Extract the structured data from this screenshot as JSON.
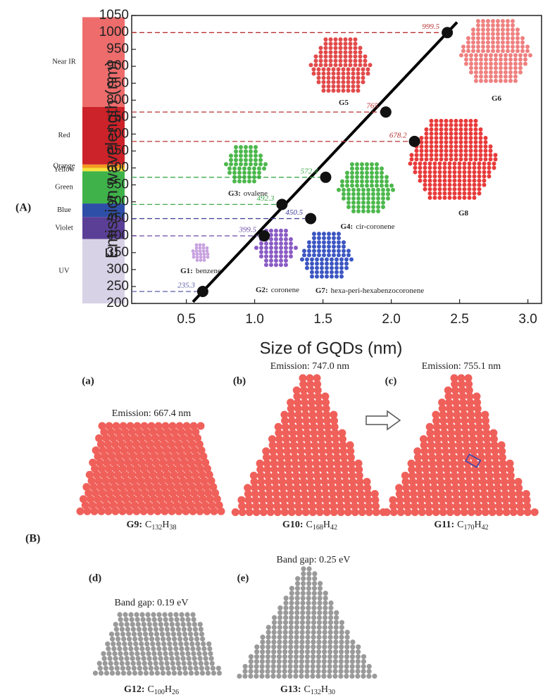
{
  "chart_data": {
    "type": "scatter",
    "y_label": "Emission wavelength (nm)",
    "x_label": "Size of GQDs (nm)",
    "x": [
      0.62,
      1.07,
      1.2,
      1.41,
      1.52,
      1.96,
      2.17,
      2.41
    ],
    "values": [
      235.3,
      399.5,
      492.3,
      450.5,
      572.4,
      765,
      678.2,
      999.5
    ],
    "point_colors": [
      "#5a5aa8",
      "#6a4aa8",
      "#3caa4a",
      "#3a3a98",
      "#3caa4a",
      "#b83232",
      "#b83232",
      "#b83232"
    ],
    "marker_color": "#111111",
    "trend_line": true,
    "xlim": [
      0.1,
      3.1
    ],
    "ylim": [
      200,
      1050
    ],
    "xticks": [
      0.5,
      {
        "value": 1,
        "label": "1.0"
      },
      1.5,
      {
        "value": 2,
        "label": "2.0"
      },
      2.5,
      {
        "value": 3,
        "label": "3.0"
      }
    ],
    "yticks": [
      200,
      250,
      300,
      350,
      400,
      450,
      500,
      550,
      600,
      650,
      700,
      750,
      800,
      850,
      900,
      950,
      1000,
      1050
    ]
  },
  "panel_a_label": "(A)",
  "spectrum": [
    {
      "label": "Near IR",
      "color": "#ee6c6c",
      "from": 780,
      "to": 1045
    },
    {
      "label": "Red",
      "color": "#cc2229",
      "from": 610,
      "to": 780
    },
    {
      "label": "Orange",
      "color": "#f39a21",
      "from": 600,
      "to": 610
    },
    {
      "label": "Yellow",
      "color": "#f5e23b",
      "from": 590,
      "to": 600
    },
    {
      "label": "Green",
      "color": "#3fb24a",
      "from": 495,
      "to": 590
    },
    {
      "label": "Blue",
      "color": "#2e4fa8",
      "from": 455,
      "to": 495
    },
    {
      "label": "Violet",
      "color": "#5b3f96",
      "from": 390,
      "to": 455
    },
    {
      "label": "UV",
      "color": "#d8d2e6",
      "from": 200,
      "to": 390
    }
  ],
  "molecules_in_chart": [
    {
      "id": "G5",
      "color": "#e24a4a"
    },
    {
      "id": "G6",
      "color": "#ef8080"
    },
    {
      "id": "G8",
      "color": "#e83a3a"
    },
    {
      "id": "G3:",
      "name": "ovalene",
      "color": "#4cb84c"
    },
    {
      "id": "G4:",
      "name": "cir-coronene",
      "color": "#4cb84c"
    },
    {
      "id": "G1:",
      "name": "benzene",
      "color": "#c9a3e0"
    },
    {
      "id": "G2:",
      "name": "coronene",
      "color": "#8a5cc4"
    },
    {
      "id": "G7:",
      "name": "hexa-peri-hexabenzocoronene",
      "color": "#3c56c2"
    }
  ],
  "panel_b": {
    "label": "(B)",
    "structures": [
      {
        "letter": "(a)",
        "caption": "Emission: 667.4 nm",
        "id": "G9:",
        "formula": [
          {
            "el": "C",
            "n": "132"
          },
          {
            "el": "H",
            "n": "38"
          }
        ],
        "color": "#f0605a"
      },
      {
        "letter": "(b)",
        "caption": "Emission: 747.0 nm",
        "id": "G10:",
        "formula": [
          {
            "el": "C",
            "n": "168"
          },
          {
            "el": "H",
            "n": "42"
          }
        ],
        "color": "#f0605a"
      },
      {
        "letter": "(c)",
        "caption": "Emission: 755.1 nm",
        "id": "G11:",
        "formula": [
          {
            "el": "C",
            "n": "170"
          },
          {
            "el": "H",
            "n": "42"
          }
        ],
        "color": "#f0605a"
      },
      {
        "letter": "(d)",
        "caption": "Band gap: 0.19 eV",
        "id": "G12:",
        "formula": [
          {
            "el": "C",
            "n": "100"
          },
          {
            "el": "H",
            "n": "26"
          }
        ],
        "color": "#9a9a9a"
      },
      {
        "letter": "(e)",
        "caption": "Band gap: 0.25 eV",
        "id": "G13:",
        "formula": [
          {
            "el": "C",
            "n": "132"
          },
          {
            "el": "H",
            "n": "30"
          }
        ],
        "color": "#9a9a9a"
      }
    ]
  }
}
